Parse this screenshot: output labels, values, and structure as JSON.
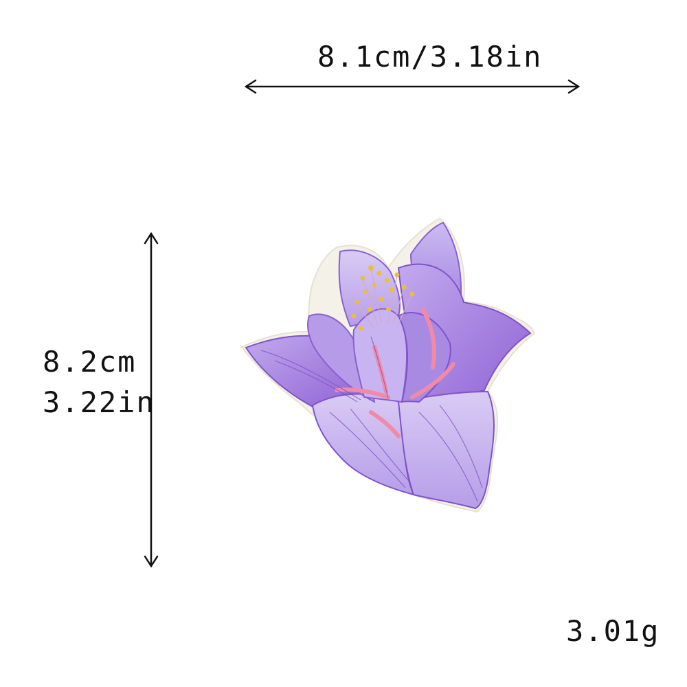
{
  "dimensions": {
    "width": "8.1cm/3.18in",
    "height_cm": "8.2cm",
    "height_in": "3.22in"
  },
  "weight": "3.01g",
  "colors": {
    "petal_light": "#c9b6f0",
    "petal_mid": "#a98ae3",
    "petal_dark": "#8a5fd1",
    "accent_pink": "#f08aa6",
    "stamen": "#e8c03a",
    "border": "#f2efe6"
  }
}
